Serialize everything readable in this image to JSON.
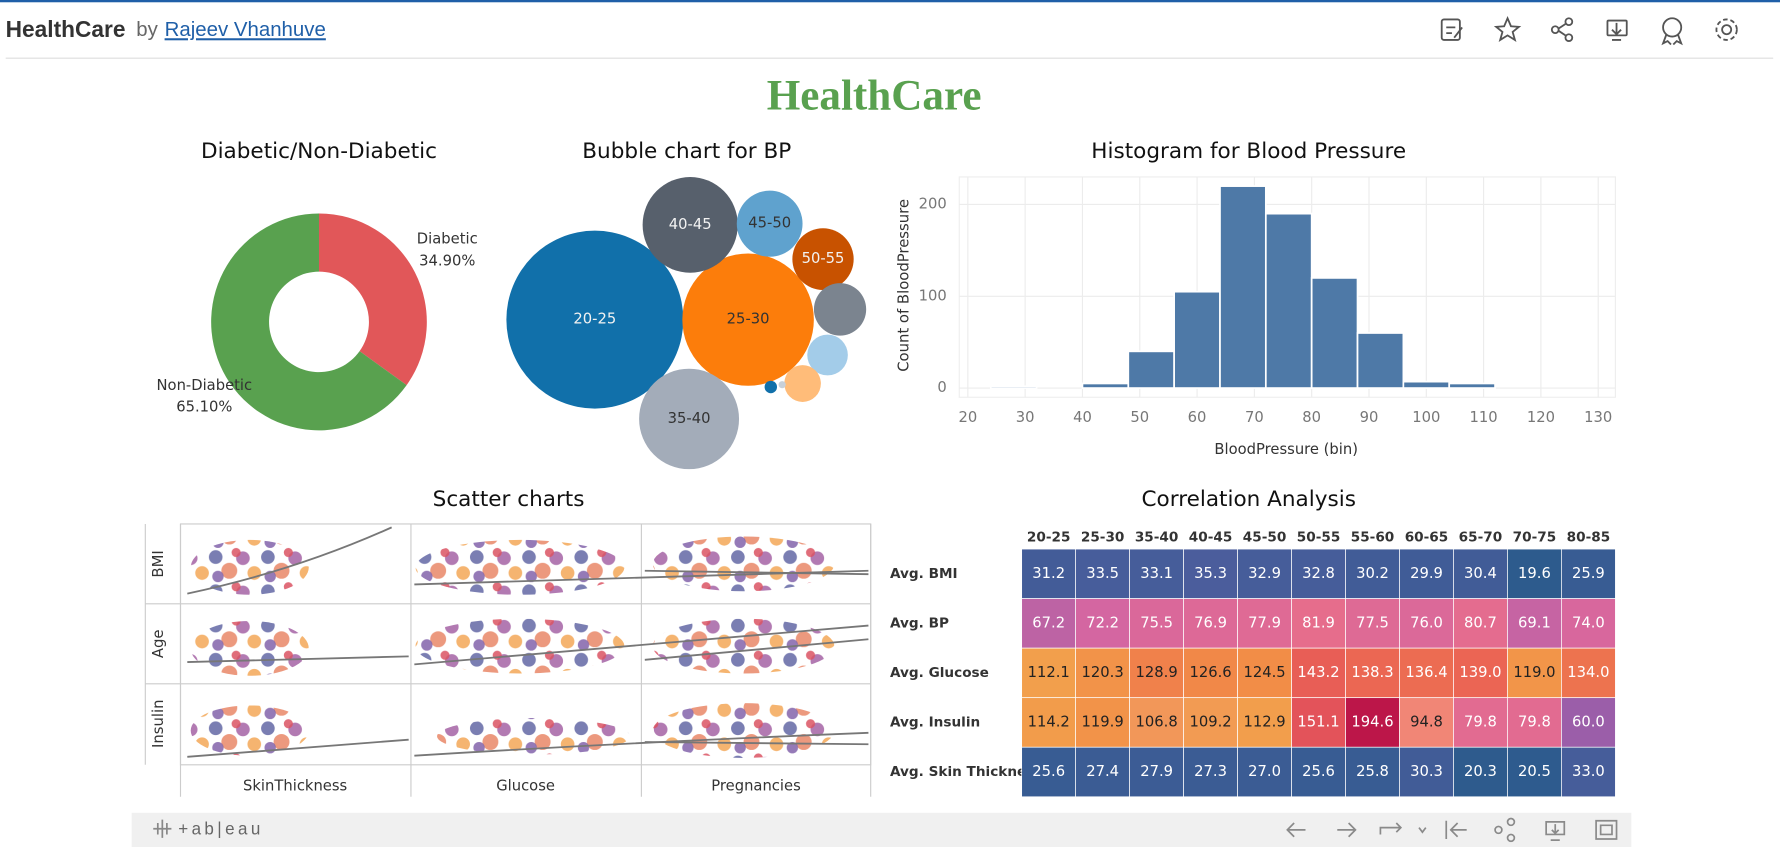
{
  "header": {
    "app": "HealthCare",
    "by": "by",
    "author": "Rajeev Vhanhuve"
  },
  "dashboard_title": "HealthCare",
  "chart_data": [
    {
      "type": "donut",
      "title": "Diabetic/Non-Diabetic",
      "categories": [
        "Diabetic",
        "Non-Diabetic"
      ],
      "values": [
        34.9,
        65.1
      ],
      "value_labels": [
        "34.90%",
        "65.10%"
      ],
      "colors": [
        "#e15759",
        "#59a14f"
      ]
    },
    {
      "type": "bubble",
      "title": "Bubble chart for BP",
      "categories": [
        "20-25",
        "25-30",
        "35-40",
        "40-45",
        "45-50",
        "50-55",
        null,
        null,
        null,
        null,
        null
      ],
      "values": [
        608,
        336,
        194,
        176,
        84,
        73,
        53,
        32,
        26,
        3,
        1
      ],
      "colors": [
        "#1170aa",
        "#fc7d0b",
        "#a3acb9",
        "#57606c",
        "#5fa2ce",
        "#c85200",
        "#7b848f",
        "#a3cce9",
        "#ffbc79",
        "#1170aa",
        "#c8d0d9"
      ]
    },
    {
      "type": "histogram",
      "title": "Histogram for Blood Pressure",
      "xlabel": "BloodPressure (bin)",
      "ylabel": "Count of BloodPressure",
      "bins": [
        24,
        32,
        40,
        48,
        56,
        64,
        72,
        80,
        88,
        96,
        104,
        112,
        120,
        128
      ],
      "counts": [
        2,
        0,
        5,
        40,
        105,
        220,
        190,
        120,
        60,
        7,
        5,
        0,
        0
      ],
      "color": "#4e79a7",
      "xlim": [
        18.5,
        133
      ],
      "xticks": [
        20,
        30,
        40,
        50,
        60,
        70,
        80,
        90,
        100,
        110,
        120,
        130
      ],
      "ylim": [
        -10,
        230
      ],
      "yticks": [
        0,
        100,
        200
      ],
      "grid": true
    },
    {
      "type": "scatter_matrix",
      "title": "Scatter charts",
      "rows": [
        "BMI",
        "Age",
        "Insulin"
      ],
      "columns": [
        "SkinThickness",
        "Glucose",
        "Pregnancies"
      ]
    },
    {
      "type": "heatmap",
      "title": "Correlation Analysis",
      "columns": [
        "20-25",
        "25-30",
        "35-40",
        "40-45",
        "45-50",
        "50-55",
        "55-60",
        "60-65",
        "65-70",
        "70-75",
        "80-85"
      ],
      "rows": [
        "Avg. BMI",
        "Avg. BP",
        "Avg. Glucose",
        "Avg. Insulin",
        "Avg. Skin Thickness"
      ],
      "values": [
        [
          31.2,
          33.5,
          33.1,
          35.3,
          32.9,
          32.8,
          30.2,
          29.9,
          30.4,
          19.6,
          25.9
        ],
        [
          67.2,
          72.2,
          75.5,
          76.9,
          77.9,
          81.9,
          77.5,
          76.0,
          80.7,
          69.1,
          74.0
        ],
        [
          112.1,
          120.3,
          128.9,
          126.6,
          124.5,
          143.2,
          138.3,
          136.4,
          139.0,
          119.0,
          134.0
        ],
        [
          114.2,
          119.9,
          106.8,
          109.2,
          112.9,
          151.1,
          194.6,
          94.8,
          79.8,
          79.8,
          60.0
        ],
        [
          25.6,
          27.4,
          27.9,
          27.3,
          27.0,
          25.6,
          25.8,
          30.3,
          20.3,
          20.5,
          33.0
        ]
      ],
      "value_labels": [
        [
          "31.2",
          "33.5",
          "33.1",
          "35.3",
          "32.9",
          "32.8",
          "30.2",
          "29.9",
          "30.4",
          "19.6",
          "25.9"
        ],
        [
          "67.2",
          "72.2",
          "75.5",
          "76.9",
          "77.9",
          "81.9",
          "77.5",
          "76.0",
          "80.7",
          "69.1",
          "74.0"
        ],
        [
          "112.1",
          "120.3",
          "128.9",
          "126.6",
          "124.5",
          "143.2",
          "138.3",
          "136.4",
          "139.0",
          "119.0",
          "134.0"
        ],
        [
          "114.2",
          "119.9",
          "106.8",
          "109.2",
          "112.9",
          "151.1",
          "194.6",
          "94.8",
          "79.8",
          "79.8",
          "60.0"
        ],
        [
          "25.6",
          "27.4",
          "27.9",
          "27.3",
          "27.0",
          "25.6",
          "25.8",
          "30.3",
          "20.3",
          "20.5",
          "33.0"
        ]
      ],
      "color_stops": [
        [
          20,
          "#2d5b8d"
        ],
        [
          35,
          "#4a5d9c"
        ],
        [
          60,
          "#9b5ea9"
        ],
        [
          72,
          "#d466a1"
        ],
        [
          82,
          "#e66d8c"
        ],
        [
          95,
          "#f18676"
        ],
        [
          112,
          "#f29f4c"
        ],
        [
          125,
          "#f28c47"
        ],
        [
          140,
          "#ea6255"
        ],
        [
          152,
          "#e2525a"
        ],
        [
          195,
          "#bc1549"
        ]
      ]
    }
  ],
  "footer": {
    "brand": "+ab|eau"
  }
}
